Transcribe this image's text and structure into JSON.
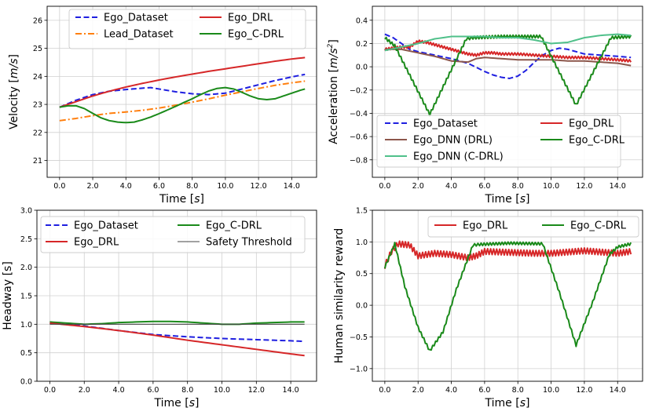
{
  "chart_data": [
    {
      "type": "line",
      "id": "velocity",
      "xlabel_text": "Time",
      "xlabel_unit": "s",
      "ylabel_text": "Velocity",
      "ylabel_unit": "m/s",
      "xlim": [
        -0.75,
        15.5
      ],
      "ylim": [
        20.4,
        26.5
      ],
      "xticks": [
        0.0,
        2.0,
        4.0,
        6.0,
        8.0,
        10.0,
        12.0,
        14.0
      ],
      "xtick_labels": [
        "0.0",
        "2.0",
        "4.0",
        "6.0",
        "8.0",
        "10.0",
        "12.0",
        "14.0"
      ],
      "yticks": [
        21,
        22,
        23,
        24,
        25,
        26
      ],
      "ytick_labels": [
        "21",
        "22",
        "23",
        "24",
        "25",
        "26"
      ],
      "grid": true,
      "legend_position": "top-center",
      "legend_cols": 2,
      "series": [
        {
          "name": "Ego_Dataset",
          "color": "#1f1fe0",
          "dash": "dashed",
          "x": [
            0,
            1,
            2,
            3,
            4,
            5,
            5.5,
            6,
            7,
            8,
            9,
            10,
            11,
            12,
            13,
            14,
            14.8
          ],
          "y": [
            22.9,
            23.15,
            23.35,
            23.47,
            23.53,
            23.58,
            23.6,
            23.55,
            23.45,
            23.38,
            23.35,
            23.4,
            23.55,
            23.7,
            23.85,
            23.98,
            24.07
          ]
        },
        {
          "name": "Lead_Dataset",
          "color": "#ff7f0e",
          "dash": "dashdot",
          "x": [
            0,
            1,
            2,
            3,
            4,
            5,
            6,
            7,
            8,
            9,
            10,
            11,
            12,
            13,
            14,
            14.8
          ],
          "y": [
            22.42,
            22.5,
            22.6,
            22.68,
            22.73,
            22.79,
            22.87,
            22.97,
            23.08,
            23.2,
            23.33,
            23.45,
            23.57,
            23.68,
            23.77,
            23.83
          ]
        },
        {
          "name": "Ego_DRL",
          "color": "#d62728",
          "dash": "solid",
          "x": [
            0,
            1,
            2,
            3,
            4,
            5,
            6,
            7,
            8,
            9,
            10,
            11,
            12,
            13,
            14,
            14.8
          ],
          "y": [
            22.9,
            23.1,
            23.3,
            23.47,
            23.62,
            23.75,
            23.87,
            23.98,
            24.08,
            24.18,
            24.27,
            24.36,
            24.45,
            24.54,
            24.62,
            24.67
          ]
        },
        {
          "name": "Ego_C-DRL",
          "color": "#1a8a1a",
          "dash": "solid",
          "x": [
            0,
            0.5,
            1,
            1.5,
            2,
            2.5,
            3,
            3.5,
            4,
            4.5,
            5,
            5.5,
            6,
            6.5,
            7,
            7.5,
            8,
            8.5,
            9,
            9.5,
            10,
            10.5,
            11,
            11.5,
            12,
            12.5,
            13,
            13.5,
            14,
            14.5,
            14.8
          ],
          "y": [
            22.9,
            22.95,
            22.95,
            22.85,
            22.68,
            22.52,
            22.42,
            22.37,
            22.35,
            22.37,
            22.45,
            22.55,
            22.67,
            22.8,
            22.93,
            23.07,
            23.2,
            23.35,
            23.48,
            23.57,
            23.6,
            23.55,
            23.43,
            23.3,
            23.2,
            23.17,
            23.2,
            23.3,
            23.4,
            23.5,
            23.55
          ]
        }
      ]
    },
    {
      "type": "line",
      "id": "acceleration",
      "xlabel_text": "Time",
      "xlabel_unit": "s",
      "ylabel_text": "Acceleration",
      "ylabel_unit": "m/s",
      "ylabel_sup": "2",
      "xlim": [
        -0.75,
        15.5
      ],
      "ylim": [
        -0.95,
        0.52
      ],
      "xticks": [
        0.0,
        2.0,
        4.0,
        6.0,
        8.0,
        10.0,
        12.0,
        14.0
      ],
      "xtick_labels": [
        "0.0",
        "2.0",
        "4.0",
        "6.0",
        "8.0",
        "10.0",
        "12.0",
        "14.0"
      ],
      "yticks": [
        -0.8,
        -0.6,
        -0.4,
        -0.2,
        0.0,
        0.2,
        0.4
      ],
      "ytick_labels": [
        "−0.8",
        "−0.6",
        "−0.4",
        "−0.2",
        "0.0",
        "0.2",
        "0.4"
      ],
      "grid": true,
      "legend_position": "bottom-center",
      "legend_cols": 2,
      "series": [
        {
          "name": "Ego_Dataset",
          "color": "#1f1fe0",
          "dash": "dashed",
          "x": [
            0,
            0.5,
            1,
            1.5,
            2,
            3,
            4,
            5,
            6,
            6.5,
            7,
            7.5,
            8,
            8.5,
            9,
            9.5,
            10,
            10.5,
            11,
            11.5,
            12,
            13,
            14,
            14.8
          ],
          "y": [
            0.28,
            0.25,
            0.2,
            0.15,
            0.13,
            0.1,
            0.07,
            0.03,
            -0.04,
            -0.07,
            -0.09,
            -0.1,
            -0.08,
            -0.03,
            0.04,
            0.1,
            0.14,
            0.16,
            0.15,
            0.13,
            0.11,
            0.1,
            0.09,
            0.08
          ]
        },
        {
          "name": "Ego_DRL",
          "color": "#d62728",
          "dash": "solid",
          "wiggle": 0.01,
          "x": [
            0,
            0.5,
            1,
            1.5,
            2,
            2.5,
            3,
            3.5,
            4,
            4.5,
            5,
            5.5,
            6,
            6.5,
            7,
            8,
            9,
            10,
            11,
            12,
            13,
            14,
            14.8
          ],
          "y": [
            0.15,
            0.16,
            0.17,
            0.17,
            0.22,
            0.21,
            0.19,
            0.17,
            0.15,
            0.13,
            0.11,
            0.1,
            0.12,
            0.12,
            0.11,
            0.11,
            0.1,
            0.09,
            0.08,
            0.08,
            0.07,
            0.06,
            0.05
          ]
        },
        {
          "name": "Ego_DNN (DRL)",
          "color": "#8c564b",
          "dash": "solid",
          "x": [
            0,
            1,
            2,
            3,
            4,
            5,
            5.5,
            6,
            7,
            8,
            9,
            10,
            11,
            12,
            13,
            14,
            14.8
          ],
          "y": [
            0.15,
            0.15,
            0.12,
            0.09,
            0.05,
            0.04,
            0.07,
            0.08,
            0.07,
            0.06,
            0.06,
            0.06,
            0.05,
            0.05,
            0.04,
            0.03,
            0.01
          ]
        },
        {
          "name": "Ego_C-DRL",
          "color": "#1a8a1a",
          "dash": "solid",
          "wiggle": 0.012,
          "x": [
            0,
            0.6,
            2.7,
            4.9,
            5.3,
            7,
            9.4,
            11.5,
            13.6,
            14.8
          ],
          "y": [
            0.25,
            0.18,
            -0.41,
            0.24,
            0.25,
            0.26,
            0.26,
            -0.33,
            0.25,
            0.26
          ]
        },
        {
          "name": "Ego_DNN (C-DRL)",
          "color": "#4fc08a",
          "dash": "solid",
          "x": [
            0,
            1,
            2,
            3,
            4,
            5,
            6,
            7,
            8,
            9,
            10,
            11,
            12,
            13,
            14,
            14.8
          ],
          "y": [
            0.14,
            0.17,
            0.2,
            0.24,
            0.26,
            0.26,
            0.26,
            0.25,
            0.25,
            0.23,
            0.2,
            0.21,
            0.25,
            0.27,
            0.28,
            0.27
          ]
        }
      ]
    },
    {
      "type": "line",
      "id": "headway",
      "xlabel_text": "Time",
      "xlabel_unit": "s",
      "ylabel_text": "Headway [s]",
      "xlim": [
        -0.75,
        15.5
      ],
      "ylim": [
        0.0,
        3.0
      ],
      "xticks": [
        0.0,
        2.0,
        4.0,
        6.0,
        8.0,
        10.0,
        12.0,
        14.0
      ],
      "xtick_labels": [
        "0.0",
        "2.0",
        "4.0",
        "6.0",
        "8.0",
        "10.0",
        "12.0",
        "14.0"
      ],
      "yticks": [
        0.0,
        0.5,
        1.0,
        1.5,
        2.0,
        2.5,
        3.0
      ],
      "ytick_labels": [
        "0.0",
        "0.5",
        "1.0",
        "1.5",
        "2.0",
        "2.5",
        "3.0"
      ],
      "grid": true,
      "legend_position": "top-center",
      "legend_cols": 2,
      "series": [
        {
          "name": "Ego_Dataset",
          "color": "#1f1fe0",
          "dash": "dashed",
          "x": [
            0,
            2,
            4,
            6,
            8,
            10,
            12,
            14,
            14.8
          ],
          "y": [
            1.02,
            0.97,
            0.89,
            0.82,
            0.78,
            0.75,
            0.73,
            0.71,
            0.7
          ]
        },
        {
          "name": "Ego_C-DRL",
          "color": "#1a8a1a",
          "dash": "solid",
          "x": [
            0,
            1,
            2,
            3,
            4,
            5,
            6,
            7,
            8,
            9,
            10,
            11,
            12,
            13,
            14,
            14.8
          ],
          "y": [
            1.04,
            1.02,
            1.0,
            1.01,
            1.03,
            1.04,
            1.05,
            1.05,
            1.04,
            1.02,
            1.0,
            1.0,
            1.02,
            1.03,
            1.04,
            1.04
          ]
        },
        {
          "name": "Ego_DRL",
          "color": "#d62728",
          "dash": "solid",
          "x": [
            0,
            2,
            4,
            6,
            8,
            10,
            12,
            14,
            14.8
          ],
          "y": [
            1.02,
            0.96,
            0.89,
            0.81,
            0.72,
            0.64,
            0.56,
            0.48,
            0.45
          ]
        },
        {
          "name": "Safety Threshold",
          "color": "#444444",
          "dash": "solid",
          "width": 1.1,
          "x": [
            0,
            14.8
          ],
          "y": [
            1.0,
            1.0
          ]
        }
      ]
    },
    {
      "type": "line",
      "id": "human-similarity",
      "xlabel_text": "Time",
      "xlabel_unit": "s",
      "ylabel_text": "Human similarity reward",
      "xlim": [
        -0.75,
        15.5
      ],
      "ylim": [
        -1.2,
        1.5
      ],
      "xticks": [
        0.0,
        2.0,
        4.0,
        6.0,
        8.0,
        10.0,
        12.0,
        14.0
      ],
      "xtick_labels": [
        "0.0",
        "2.0",
        "4.0",
        "6.0",
        "8.0",
        "10.0",
        "12.0",
        "14.0"
      ],
      "yticks": [
        -1.0,
        -0.5,
        0.0,
        0.5,
        1.0,
        1.5
      ],
      "ytick_labels": [
        "−1.0",
        "−0.5",
        "0.0",
        "0.5",
        "1.0",
        "1.5"
      ],
      "grid": true,
      "legend_position": "top-right",
      "legend_cols": 2,
      "series": [
        {
          "name": "Ego_DRL",
          "color": "#d62728",
          "dash": "solid",
          "wiggle": 0.045,
          "x": [
            0,
            0.4,
            0.8,
            1.5,
            2,
            3,
            4,
            5,
            5.5,
            6,
            7,
            8,
            9,
            10,
            11,
            12,
            13,
            14,
            14.8
          ],
          "y": [
            0.62,
            0.85,
            0.97,
            0.95,
            0.78,
            0.82,
            0.8,
            0.75,
            0.78,
            0.85,
            0.84,
            0.83,
            0.82,
            0.82,
            0.84,
            0.86,
            0.84,
            0.82,
            0.85
          ]
        },
        {
          "name": "Ego_C-DRL",
          "color": "#1a8a1a",
          "dash": "solid",
          "wiggle": 0.02,
          "x": [
            0,
            0.6,
            1.2,
            2.0,
            2.7,
            3.5,
            4.3,
            5.3,
            5.7,
            7.5,
            9.5,
            10.5,
            11.5,
            12.5,
            13.5,
            14.0,
            14.8
          ],
          "y": [
            0.6,
            0.97,
            0.3,
            -0.35,
            -0.72,
            -0.42,
            0.25,
            0.95,
            0.96,
            0.98,
            0.97,
            0.2,
            -0.63,
            0.05,
            0.8,
            0.92,
            0.97
          ]
        }
      ]
    }
  ]
}
